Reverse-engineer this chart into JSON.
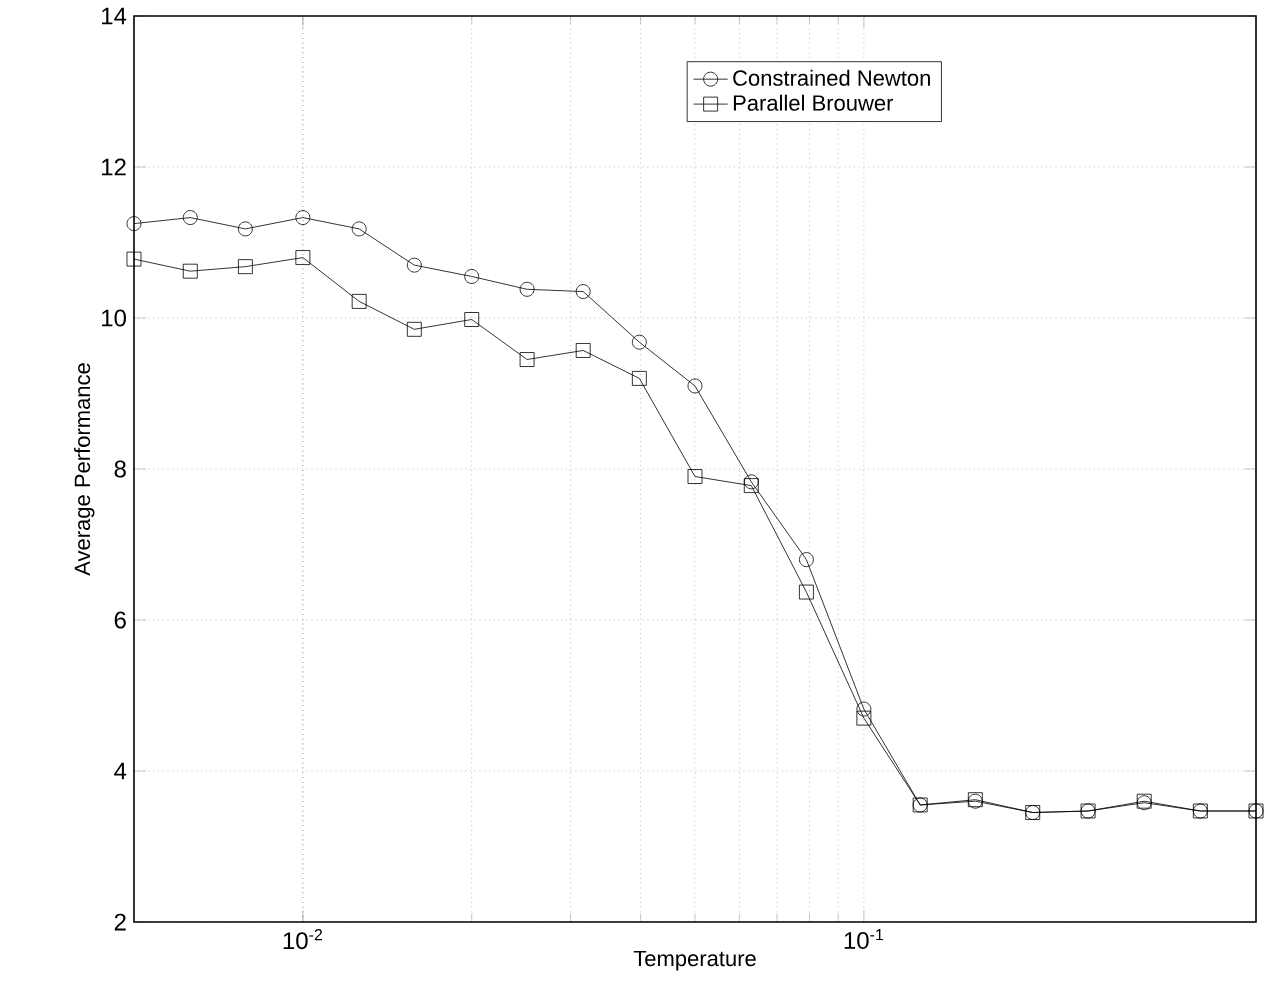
{
  "chart_data": {
    "type": "line",
    "xlabel": "Temperature",
    "ylabel": "Average Performance",
    "log": "x",
    "grid": true,
    "legend": "top right",
    "x": [
      0.005,
      0.0063,
      0.0079,
      0.01,
      0.0126,
      0.0158,
      0.02,
      0.0251,
      0.0316,
      0.0398,
      0.05,
      0.063,
      0.079,
      0.1,
      0.126,
      0.158,
      0.2,
      0.251,
      0.316,
      0.398,
      0.5
    ],
    "xlim": [
      0.005,
      0.5
    ],
    "xticks": [
      {
        "value": 0.01,
        "label": "10$^{-2}$"
      },
      {
        "value": 0.1,
        "label": "10$^{-1}$"
      }
    ],
    "ylim": [
      2,
      14
    ],
    "yticks": [
      2,
      4,
      6,
      8,
      10,
      12,
      14
    ],
    "series": [
      {
        "name": "Constrained Newton",
        "color": "#000000",
        "marker": "circle",
        "values": [
          11.25,
          11.33,
          11.18,
          11.33,
          11.18,
          10.7,
          10.55,
          10.38,
          10.35,
          9.68,
          9.1,
          7.83,
          6.8,
          4.82,
          3.55,
          3.6,
          3.45,
          3.47,
          3.58,
          3.47,
          3.47
        ]
      },
      {
        "name": "Parallel Brouwer",
        "color": "#000000",
        "marker": "square",
        "values": [
          10.78,
          10.62,
          10.68,
          10.8,
          10.22,
          9.85,
          9.98,
          9.45,
          9.57,
          9.2,
          7.9,
          7.78,
          6.37,
          4.7,
          3.55,
          3.62,
          3.45,
          3.47,
          3.6,
          3.47,
          3.47
        ]
      }
    ]
  }
}
